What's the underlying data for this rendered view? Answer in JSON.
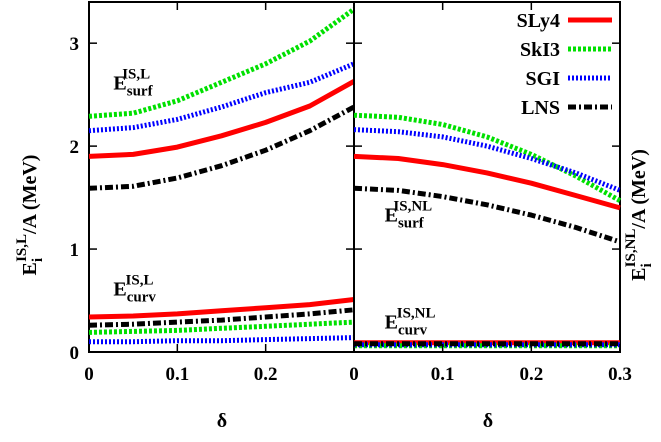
{
  "chart_data": [
    {
      "type": "line",
      "panel": "left",
      "xlabel": "δ",
      "ylabel_main": "E",
      "ylabel_sub": "i",
      "ylabel_sup": "IS,L",
      "ylabel_rest": "/A (MeV)",
      "xlim": [
        0,
        0.3
      ],
      "ylim": [
        0,
        3.4
      ],
      "xticks": [
        {
          "v": 0,
          "t": "0"
        },
        {
          "v": 0.1,
          "t": "0.1"
        },
        {
          "v": 0.2,
          "t": "0.2"
        }
      ],
      "yticks": [
        {
          "v": 0,
          "t": "0"
        },
        {
          "v": 1,
          "t": "1"
        },
        {
          "v": 2,
          "t": "2"
        },
        {
          "v": 3,
          "t": "3"
        }
      ],
      "annotations": [
        {
          "main": "E",
          "sub": "surf",
          "sup": "IS,L",
          "x": 0.005,
          "y": 2.55
        },
        {
          "main": "E",
          "sub": "curv",
          "sup": "IS,L",
          "x": 0.005,
          "y": 0.55
        }
      ],
      "x": [
        0,
        0.05,
        0.1,
        0.15,
        0.2,
        0.25,
        0.3
      ],
      "series": [
        {
          "name": "SLy4",
          "group": "surf",
          "values": [
            1.9,
            1.92,
            1.99,
            2.1,
            2.23,
            2.39,
            2.63
          ]
        },
        {
          "name": "SkI3",
          "group": "surf",
          "values": [
            2.29,
            2.32,
            2.44,
            2.62,
            2.8,
            3.02,
            3.33
          ]
        },
        {
          "name": "SGI",
          "group": "surf",
          "values": [
            2.15,
            2.18,
            2.26,
            2.38,
            2.52,
            2.62,
            2.8
          ]
        },
        {
          "name": "LNS",
          "group": "surf",
          "values": [
            1.59,
            1.61,
            1.69,
            1.81,
            1.96,
            2.15,
            2.38
          ]
        },
        {
          "name": "SLy4",
          "group": "curv",
          "values": [
            0.34,
            0.35,
            0.37,
            0.4,
            0.43,
            0.46,
            0.51
          ]
        },
        {
          "name": "SkI3",
          "group": "curv",
          "values": [
            0.19,
            0.2,
            0.21,
            0.23,
            0.25,
            0.27,
            0.29
          ]
        },
        {
          "name": "SGI",
          "group": "curv",
          "values": [
            0.1,
            0.1,
            0.11,
            0.11,
            0.12,
            0.13,
            0.14
          ]
        },
        {
          "name": "LNS",
          "group": "curv",
          "values": [
            0.26,
            0.27,
            0.29,
            0.31,
            0.34,
            0.37,
            0.41
          ]
        }
      ]
    },
    {
      "type": "line",
      "panel": "right",
      "xlabel": "δ",
      "ylabel_main": "E",
      "ylabel_sub": "i",
      "ylabel_sup": "IS,NL",
      "ylabel_rest": "/A (MeV)",
      "xlim": [
        0,
        0.3
      ],
      "ylim": [
        0,
        3.4
      ],
      "xticks": [
        {
          "v": 0,
          "t": "0"
        },
        {
          "v": 0.1,
          "t": "0.1"
        },
        {
          "v": 0.2,
          "t": "0.2"
        },
        {
          "v": 0.3,
          "t": "0.3"
        }
      ],
      "annotations": [
        {
          "main": "E",
          "sub": "surf",
          "sup": "IS,NL",
          "x": 0.012,
          "y": 1.27
        },
        {
          "main": "E",
          "sub": "curv",
          "sup": "IS,NL",
          "x": 0.012,
          "y": 0.23
        }
      ],
      "x": [
        0,
        0.05,
        0.1,
        0.15,
        0.2,
        0.25,
        0.3
      ],
      "series": [
        {
          "name": "SLy4",
          "group": "surf",
          "values": [
            1.9,
            1.88,
            1.82,
            1.74,
            1.64,
            1.52,
            1.4
          ]
        },
        {
          "name": "SkI3",
          "group": "surf",
          "values": [
            2.3,
            2.28,
            2.21,
            2.09,
            1.92,
            1.71,
            1.47
          ]
        },
        {
          "name": "SGI",
          "group": "surf",
          "values": [
            2.16,
            2.14,
            2.09,
            2.0,
            1.88,
            1.74,
            1.57
          ]
        },
        {
          "name": "LNS",
          "group": "surf",
          "values": [
            1.59,
            1.57,
            1.51,
            1.43,
            1.33,
            1.21,
            1.07
          ]
        },
        {
          "name": "SLy4",
          "group": "curv",
          "values": [
            0.09,
            0.09,
            0.09,
            0.09,
            0.09,
            0.09,
            0.09
          ]
        },
        {
          "name": "SkI3",
          "group": "curv",
          "values": [
            0.06,
            0.06,
            0.06,
            0.06,
            0.06,
            0.06,
            0.06
          ]
        },
        {
          "name": "SGI",
          "group": "curv",
          "values": [
            0.07,
            0.07,
            0.07,
            0.07,
            0.07,
            0.07,
            0.07
          ]
        },
        {
          "name": "LNS",
          "group": "curv",
          "values": [
            0.08,
            0.08,
            0.08,
            0.08,
            0.08,
            0.08,
            0.08
          ]
        }
      ]
    }
  ],
  "legend": {
    "placement": "top-right",
    "entries": [
      {
        "name": "SLy4",
        "color": "#ff0000",
        "dash": "solid"
      },
      {
        "name": "SkI3",
        "color": "#00e000",
        "dash": "dense-dot"
      },
      {
        "name": "SGI",
        "color": "#0000ff",
        "dash": "dot"
      },
      {
        "name": "LNS",
        "color": "#000000",
        "dash": "dash-dot"
      }
    ]
  },
  "series_styles": {
    "SLy4": {
      "color": "#ff0000",
      "dash": "solid"
    },
    "SkI3": {
      "color": "#00e000",
      "dash": "dense-dot"
    },
    "SGI": {
      "color": "#0000ff",
      "dash": "dot"
    },
    "LNS": {
      "color": "#000000",
      "dash": "dash-dot"
    }
  }
}
